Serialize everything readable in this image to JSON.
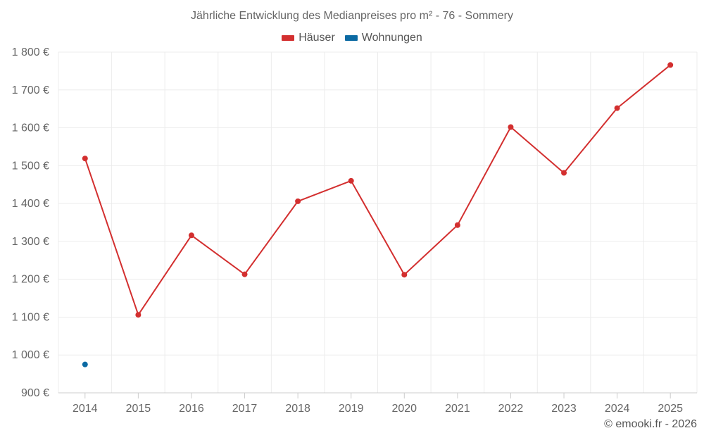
{
  "chart_data": {
    "type": "line",
    "title": "Jährliche Entwicklung des Medianpreises pro m² - 76 - Sommery",
    "categories": [
      "2014",
      "2015",
      "2016",
      "2017",
      "2018",
      "2019",
      "2020",
      "2021",
      "2022",
      "2023",
      "2024",
      "2025"
    ],
    "y_ticks": [
      "900 €",
      "1 000 €",
      "1 100 €",
      "1 200 €",
      "1 300 €",
      "1 400 €",
      "1 500 €",
      "1 600 €",
      "1 700 €",
      "1 800 €"
    ],
    "ylim": [
      900,
      1800
    ],
    "grid": true,
    "legend_position": "top-center",
    "series": [
      {
        "name": "Häuser",
        "color": "#d32f2f",
        "values": [
          1519,
          1106,
          1316,
          1213,
          1406,
          1460,
          1212,
          1343,
          1602,
          1481,
          1652,
          1766
        ]
      },
      {
        "name": "Wohnungen",
        "color": "#0b6aa3",
        "values": [
          975,
          null,
          null,
          null,
          null,
          null,
          null,
          null,
          null,
          null,
          null,
          null
        ]
      }
    ]
  },
  "credit": "© emooki.fr - 2026"
}
